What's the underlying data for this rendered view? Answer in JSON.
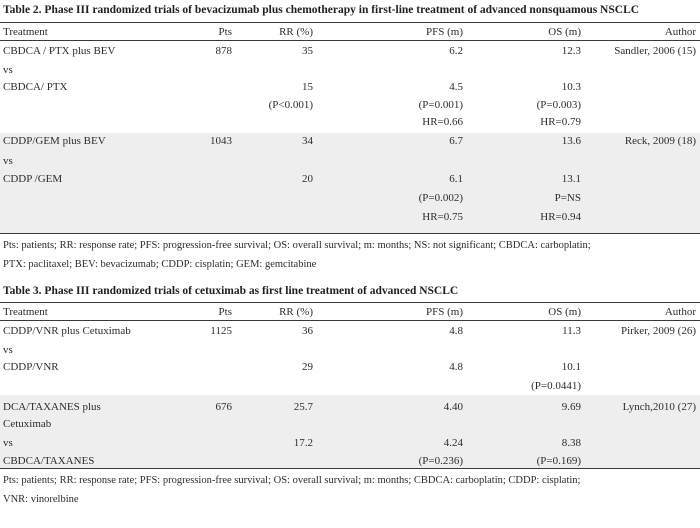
{
  "table2": {
    "caption": "Table 2. Phase III randomized trials of bevacizumab plus chemotherapy in first-line treatment of advanced nonsquamous NSCLC",
    "headers": [
      "Treatment",
      "Pts",
      "RR (%)",
      "PFS (m)",
      "OS (m)",
      "Author"
    ],
    "rows": [
      [
        "CBDCA / PTX plus BEV",
        "878",
        "35",
        "6.2",
        "12.3",
        "Sandler, 2006 (15)"
      ],
      [
        "vs",
        "",
        "",
        "",
        "",
        ""
      ],
      [
        "CBDCA/ PTX",
        "",
        "15",
        "4.5",
        "10.3",
        ""
      ],
      [
        "",
        "",
        "(P<0.001)",
        "(P=0.001)",
        "(P=0.003)",
        ""
      ],
      [
        "",
        "",
        "",
        "HR=0.66",
        "HR=0.79",
        ""
      ],
      [
        "CDDP/GEM  plus BEV",
        "1043",
        "34",
        "6.7",
        "13.6",
        "Reck, 2009 (18)"
      ],
      [
        "vs",
        "",
        "",
        "",
        "",
        ""
      ],
      [
        "CDDP /GEM",
        "",
        "20",
        "6.1",
        "13.1",
        ""
      ],
      [
        "",
        "",
        "",
        "(P=0.002)",
        "P=NS",
        ""
      ],
      [
        "",
        "",
        "",
        "HR=0.75",
        "HR=0.94",
        ""
      ]
    ],
    "footnote_line1": "Pts: patients; RR: response rate; PFS: progression-free survival; OS: overall survival; m: months; NS: not significant; CBDCA: carboplatin;",
    "footnote_line2": "PTX: paclitaxel; BEV: bevacizumab; CDDP: cisplatin; GEM: gemcitabine"
  },
  "table3": {
    "caption": "Table 3. Phase III randomized trials of cetuximab as first line treatment of advanced NSCLC",
    "headers": [
      "Treatment",
      "Pts",
      "RR (%)",
      "PFS (m)",
      "OS (m)",
      "Author"
    ],
    "rows": [
      [
        "CDDP/VNR plus Cetuximab",
        "1125",
        "36",
        "4.8",
        "11.3",
        "Pirker, 2009 (26)"
      ],
      [
        "vs",
        "",
        "",
        "",
        "",
        ""
      ],
      [
        "CDDP/VNR",
        "",
        "29",
        "4.8",
        "10.1",
        ""
      ],
      [
        "",
        "",
        "",
        "",
        "(P=0.0441)",
        ""
      ],
      [
        "DCA/TAXANES plus",
        "676",
        "25.7",
        "4.40",
        "9.69",
        "Lynch,2010 (27)"
      ],
      [
        "Cetuximab",
        "",
        "",
        "",
        "",
        ""
      ],
      [
        "vs",
        "",
        "17.2",
        "4.24",
        "8.38",
        ""
      ],
      [
        "CBDCA/TAXANES",
        "",
        "",
        "(P=0.236)",
        "(P=0.169)",
        ""
      ]
    ],
    "footnote_line1": "Pts: patients; RR: response rate; PFS: progression-free survival; OS: overall survival; m: months; CBDCA: carboplatin; CDDP: cisplatin;",
    "footnote_line2": "VNR: vinorelbine"
  }
}
